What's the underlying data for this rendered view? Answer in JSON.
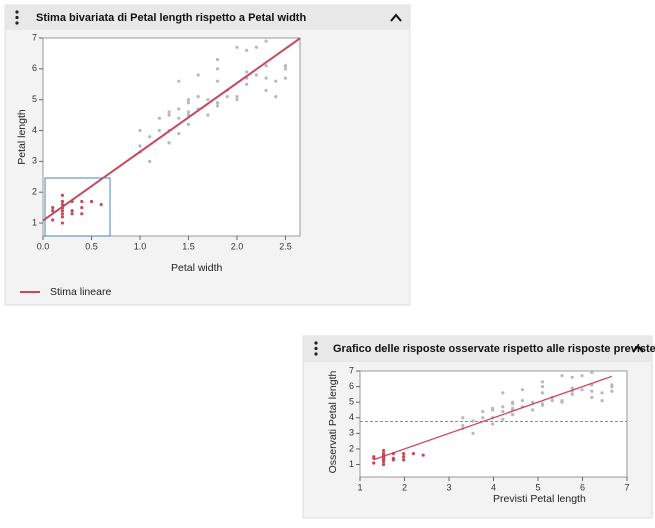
{
  "chart_data": [
    {
      "type": "scatter",
      "title": "Stima bivariata di Petal length rispetto a Petal width",
      "x_label": "Petal width",
      "y_label": "Petal length",
      "xlim": [
        0,
        2.65
      ],
      "ylim": [
        0.58,
        7
      ],
      "xticks": [
        {
          "value": 0,
          "label": "0.0"
        },
        0.5,
        {
          "value": 1,
          "label": "1.0"
        },
        1.5,
        {
          "value": 2,
          "label": "2.0"
        },
        2.5
      ],
      "yticks": [
        1,
        2,
        3,
        4,
        5,
        6,
        7
      ],
      "series": [
        {
          "color": "#c8475b",
          "x": [
            0.2,
            0.2,
            0.2,
            0.2,
            0.4,
            0.3,
            0.1,
            0.2,
            0.1,
            0.2,
            0.4,
            0.4,
            0.3,
            0.2,
            0.5,
            0.2,
            0.6,
            0.3,
            0.1,
            0.2
          ],
          "values": [
            1.4,
            1.3,
            1.5,
            1.7,
            1.7,
            1.4,
            1.5,
            1.6,
            1.1,
            1.2,
            1.5,
            1.3,
            1.7,
            1.0,
            1.7,
            1.9,
            1.6,
            1.3,
            1.4,
            1.5
          ]
        },
        {
          "color": "#b4b8c2",
          "x": [
            1.4,
            1.5,
            1.5,
            1.3,
            1.5,
            1.3,
            1.6,
            1.0,
            1.3,
            1.4,
            1.0,
            1.5,
            1.0,
            1.4,
            1.3,
            1.1,
            1.8,
            1.2,
            1.7,
            1.6,
            1.1,
            1.2,
            2.5,
            1.9,
            2.1,
            1.8,
            2.2,
            2.1,
            1.7,
            1.8,
            2.5,
            2.0,
            1.9,
            2.1,
            2.0,
            2.4,
            2.3,
            2.2,
            2.3,
            1.5,
            2.3,
            2.0,
            1.8,
            2.1,
            1.8,
            2.4,
            2.3,
            1.6,
            1.4,
            2.5
          ],
          "values": [
            4.7,
            4.5,
            4.9,
            4.0,
            4.6,
            4.5,
            4.7,
            3.3,
            4.6,
            3.9,
            3.5,
            4.2,
            4.0,
            4.4,
            3.6,
            3.0,
            4.8,
            4.0,
            5.0,
            5.1,
            3.8,
            4.4,
            6.0,
            5.1,
            5.9,
            5.6,
            5.8,
            6.6,
            4.5,
            6.3,
            6.1,
            5.1,
            5.3,
            5.5,
            5.0,
            5.1,
            5.3,
            6.7,
            6.9,
            5.0,
            5.7,
            6.7,
            4.9,
            5.7,
            6.0,
            5.6,
            6.1,
            5.8,
            5.6,
            5.7
          ]
        }
      ],
      "fit": {
        "name": "Stima lineare",
        "color": "#c8475b",
        "x": [
          0,
          2.65
        ],
        "values": [
          1.08,
          6.99
        ]
      }
    },
    {
      "type": "scatter",
      "title": "Grafico delle risposte osservate rispetto alle risposte previste",
      "x_label": "Previsti Petal length",
      "y_label": "Osservati Petal length",
      "xlim": [
        1,
        7
      ],
      "ylim": [
        0.2,
        7
      ],
      "xticks": [
        1,
        2,
        3,
        4,
        5,
        6,
        7
      ],
      "yticks": [
        1,
        2,
        3,
        4,
        5,
        6,
        7
      ],
      "series": [
        {
          "color": "#c8475b",
          "x": [
            1.53,
            1.53,
            1.53,
            1.53,
            1.98,
            1.75,
            1.31,
            1.53,
            1.31,
            1.53,
            1.98,
            1.98,
            1.75,
            1.53,
            2.2,
            1.53,
            2.42,
            1.75,
            1.31,
            1.53
          ],
          "values": [
            1.4,
            1.3,
            1.5,
            1.7,
            1.7,
            1.4,
            1.5,
            1.6,
            1.1,
            1.2,
            1.5,
            1.3,
            1.7,
            1.0,
            1.7,
            1.9,
            1.6,
            1.3,
            1.4,
            1.5
          ]
        },
        {
          "color": "#b4b8c2",
          "x": [
            4.21,
            4.43,
            4.43,
            3.98,
            4.43,
            3.98,
            4.65,
            3.31,
            3.98,
            4.21,
            3.31,
            4.43,
            3.31,
            4.21,
            3.98,
            3.54,
            5.1,
            3.76,
            4.88,
            4.65,
            3.54,
            3.76,
            6.66,
            5.32,
            5.77,
            5.1,
            5.99,
            5.77,
            4.88,
            5.1,
            6.66,
            5.54,
            5.32,
            5.77,
            5.54,
            6.44,
            6.21,
            5.99,
            6.21,
            4.43,
            6.21,
            5.54,
            5.1,
            5.77,
            5.1,
            6.44,
            6.21,
            4.65,
            4.21,
            6.66
          ],
          "values": [
            4.7,
            4.5,
            4.9,
            4.0,
            4.6,
            4.5,
            4.7,
            3.3,
            4.6,
            3.9,
            3.5,
            4.2,
            4.0,
            4.4,
            3.6,
            3.0,
            4.8,
            4.0,
            5.0,
            5.1,
            3.8,
            4.4,
            6.0,
            5.1,
            5.9,
            5.6,
            5.8,
            6.6,
            4.5,
            6.3,
            6.1,
            5.1,
            5.3,
            5.5,
            5.0,
            5.1,
            5.3,
            6.7,
            6.9,
            5.0,
            5.7,
            6.7,
            4.9,
            5.7,
            6.0,
            5.6,
            6.1,
            5.8,
            5.6,
            5.7
          ]
        }
      ],
      "fit": {
        "color": "#d9374f",
        "x": [
          1.31,
          6.66
        ],
        "values": [
          1.31,
          6.66
        ]
      },
      "mean_line": {
        "value": 3.758,
        "color": "#3d6fb6"
      }
    }
  ]
}
